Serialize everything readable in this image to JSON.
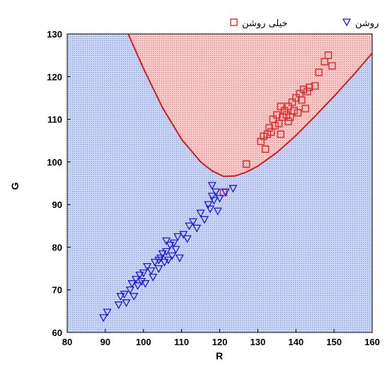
{
  "chart_data": {
    "type": "scatter",
    "xlabel": "R",
    "ylabel": "G",
    "xlim": [
      80,
      160
    ],
    "ylim": [
      60,
      130
    ],
    "x_ticks": [
      80,
      90,
      100,
      110,
      120,
      130,
      140,
      150,
      160
    ],
    "y_ticks": [
      60,
      70,
      80,
      90,
      100,
      110,
      120,
      130
    ],
    "x_tick_labels": [
      "80",
      "90",
      "100",
      "110",
      "120",
      "130",
      "140",
      "150",
      "160"
    ],
    "y_tick_labels": [
      "60",
      "70",
      "80",
      "90",
      "100",
      "110",
      "120",
      "130"
    ],
    "grid": true,
    "legend_position": "top-right",
    "regions": [
      {
        "name": "upper",
        "fill_color": "#f6c9c9",
        "dot_color": "#e06e6e"
      },
      {
        "name": "lower",
        "fill_color": "#c9d3f2",
        "dot_color": "#7788dd"
      }
    ],
    "decision_boundary": {
      "color": "#cc1f1f",
      "points": [
        [
          96.0,
          130.0
        ],
        [
          100,
          121.9
        ],
        [
          105,
          112.7
        ],
        [
          110,
          105.3
        ],
        [
          115,
          100.0
        ],
        [
          118,
          97.9
        ],
        [
          121,
          96.6
        ],
        [
          124,
          96.7
        ],
        [
          127,
          97.6
        ],
        [
          130,
          99.0
        ],
        [
          135,
          102.2
        ],
        [
          140,
          106.2
        ],
        [
          145,
          110.7
        ],
        [
          150,
          115.4
        ],
        [
          155,
          120.3
        ],
        [
          160,
          125.5
        ]
      ]
    },
    "series": [
      {
        "name": "خیلی روشن",
        "marker": "square",
        "color": "#e02020",
        "points": [
          [
            121.0,
            92.8
          ],
          [
            127.0,
            99.5
          ],
          [
            130.8,
            104.8
          ],
          [
            131.5,
            106.0
          ],
          [
            132.0,
            103.0
          ],
          [
            132.5,
            106.5
          ],
          [
            133.0,
            108.0
          ],
          [
            133.5,
            107.0
          ],
          [
            134.0,
            110.0
          ],
          [
            134.5,
            108.5
          ],
          [
            135.0,
            111.0
          ],
          [
            135.5,
            109.0
          ],
          [
            136.0,
            106.5
          ],
          [
            136.5,
            110.5
          ],
          [
            137.0,
            112.0
          ],
          [
            137.5,
            111.0
          ],
          [
            138.0,
            113.0
          ],
          [
            138.5,
            110.5
          ],
          [
            139.0,
            114.0
          ],
          [
            139.5,
            112.0
          ],
          [
            140.0,
            115.0
          ],
          [
            140.5,
            111.5
          ],
          [
            141.0,
            116.0
          ],
          [
            141.5,
            114.5
          ],
          [
            142.0,
            117.0
          ],
          [
            142.5,
            112.5
          ],
          [
            143.0,
            116.5
          ],
          [
            143.5,
            117.5
          ],
          [
            145.0,
            117.8
          ],
          [
            146.0,
            121.0
          ],
          [
            147.5,
            123.5
          ],
          [
            148.5,
            125.0
          ],
          [
            149.5,
            122.5
          ],
          [
            138.0,
            109.5
          ],
          [
            136.0,
            113.0
          ]
        ]
      },
      {
        "name": "روشن",
        "marker": "triangle-down",
        "color": "#1a1ae0",
        "points": [
          [
            89.5,
            63.5
          ],
          [
            90.5,
            64.8
          ],
          [
            93.5,
            66.5
          ],
          [
            94.0,
            68.5
          ],
          [
            95.0,
            69.0
          ],
          [
            95.5,
            67.0
          ],
          [
            96.5,
            70.0
          ],
          [
            97.0,
            71.5
          ],
          [
            97.5,
            68.5
          ],
          [
            98.0,
            72.5
          ],
          [
            98.5,
            71.0
          ],
          [
            99.0,
            73.5
          ],
          [
            99.5,
            72.0
          ],
          [
            100.0,
            74.0
          ],
          [
            100.5,
            71.5
          ],
          [
            101.0,
            75.5
          ],
          [
            102.0,
            74.5
          ],
          [
            103.0,
            76.5
          ],
          [
            104.0,
            75.0
          ],
          [
            104.5,
            77.5
          ],
          [
            105.0,
            78.5
          ],
          [
            105.5,
            76.5
          ],
          [
            106.0,
            79.0
          ],
          [
            106.5,
            77.0
          ],
          [
            107.0,
            80.5
          ],
          [
            107.5,
            78.0
          ],
          [
            108.0,
            81.0
          ],
          [
            108.5,
            79.5
          ],
          [
            109.0,
            82.5
          ],
          [
            109.5,
            77.5
          ],
          [
            110.5,
            83.0
          ],
          [
            111.5,
            82.0
          ],
          [
            112.0,
            85.0
          ],
          [
            113.0,
            86.0
          ],
          [
            114.0,
            84.5
          ],
          [
            115.0,
            88.0
          ],
          [
            116.0,
            86.5
          ],
          [
            117.0,
            90.0
          ],
          [
            117.5,
            89.0
          ],
          [
            118.0,
            92.0
          ],
          [
            118.5,
            91.0
          ],
          [
            119.0,
            93.0
          ],
          [
            119.5,
            88.5
          ],
          [
            120.0,
            91.5
          ],
          [
            118.0,
            94.5
          ],
          [
            121.5,
            93.0
          ],
          [
            123.5,
            93.8
          ],
          [
            106.0,
            81.5
          ],
          [
            102.5,
            73.0
          ],
          [
            104.0,
            77.0
          ]
        ]
      }
    ]
  }
}
